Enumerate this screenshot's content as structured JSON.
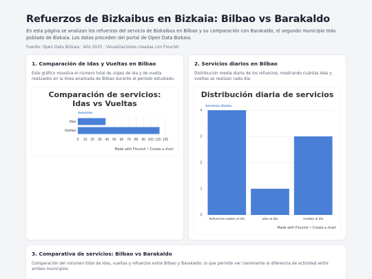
{
  "page": {
    "title": "Refuerzos de Bizkaibus en Bizkaia: Bilbao vs Barakaldo",
    "intro": "En esta página se analizan los refuerzos del servicio de Bizkaibus en Bilbao y su comparación con Barakaldo, el segundo municipio más poblado de Bizkaia. Los datos proceden del portal de Open Data Bizkaia.",
    "source": "Fuente: Open Data Bizkaia · Año 2025 · Visualizaciones creadas con Flourish"
  },
  "cards": [
    {
      "title": "1. Comparación de Idas y Vueltas en Bilbao",
      "desc": "Este gráfico muestra el número total de viajes de ida y de vuelta realizados en la línea analizada de Bilbao durante el periodo estudiado.",
      "footer": "Made with Flourish • Create a chart"
    },
    {
      "title": "2. Servicios diarios en Bilbao",
      "desc": "Distribución media diaria de los refuerzos, mostrando cuántas idas y vueltas se realizan cada día.",
      "footer": "Made with Flourish • Create a chart"
    },
    {
      "title": "3. Comparativa de servicios: Bilbao vs Barakaldo",
      "desc": "Comparación del volumen total de idas, vueltas y refuerzos entre Bilbao y Barakaldo, lo que permite ver claramente la diferencia de actividad entre ambos municipios."
    }
  ],
  "chart_data": [
    {
      "type": "bar",
      "orientation": "horizontal",
      "title": "Comparación de servicios: Idas vs Vueltas",
      "categories": [
        "Idas",
        "Vueltas"
      ],
      "series": [
        {
          "name": "Servicios",
          "values": [
            38,
            112
          ]
        }
      ],
      "xlim": [
        0,
        120
      ],
      "ticks": [
        0,
        10,
        20,
        30,
        40,
        50,
        60,
        70,
        80,
        90,
        100,
        110,
        120
      ],
      "grid": true,
      "color": "#4a7fd6"
    },
    {
      "type": "bar",
      "orientation": "vertical",
      "title": "Distribución diaria de servicios",
      "categories": [
        "Refuerzos totales al día",
        "Idas al día",
        "Vueltas al día"
      ],
      "series": [
        {
          "name": "Servicios diarios",
          "values": [
            4,
            1,
            3
          ]
        }
      ],
      "ylim": [
        0,
        4
      ],
      "ticks": [
        0,
        1,
        2,
        3,
        4
      ],
      "grid": true,
      "color": "#4a7fd6"
    }
  ]
}
